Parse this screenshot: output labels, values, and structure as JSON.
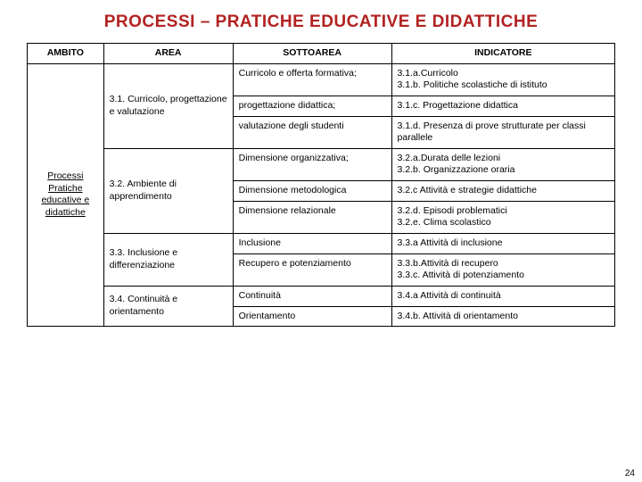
{
  "title_color": "#b22222",
  "title": "PROCESSI – PRATICHE EDUCATIVE E DIDATTICHE",
  "headers": {
    "ambito": "AMBITO",
    "area": "AREA",
    "sottoarea": "SOTTOAREA",
    "indicatore": "INDICATORE"
  },
  "ambito": "Processi Pratiche educative e didattiche",
  "areas": {
    "a31": "3.1. Curricolo, progettazione e valutazione",
    "a32": "3.2.  Ambiente di apprendimento",
    "a33": "3.3. Inclusione e differenziazione",
    "a34": "3.4. Continuità e orientamento"
  },
  "rows": {
    "r1s": "Curricolo e offerta formativa;",
    "r1i": "3.1.a.Curricolo\n3.1.b. Politiche scolastiche di istituto",
    "r2s": "progettazione didattica;",
    "r2i": "3.1.c. Progettazione didattica",
    "r3s": "valutazione degli studenti",
    "r3i": "3.1.d. Presenza di prove strutturate per classi parallele",
    "r4s": "Dimensione organizzativa;",
    "r4i": "3.2.a.Durata delle lezioni\n3.2.b. Organizzazione oraria",
    "r5s": "Dimensione metodologica",
    "r5i": "3.2.c Attività e strategie didattiche",
    "r6s": "Dimensione relazionale",
    "r6i": "3.2.d. Episodi problematici\n3.2.e. Clima scolastico",
    "r7s": "Inclusione",
    "r7i": "3.3.a Attività di inclusione",
    "r8s": "Recupero e potenziamento",
    "r8i": "3.3.b.Attività di recupero\n3.3.c. Attività di potenziamento",
    "r9s": "Continuità",
    "r9i": "3.4.a Attività di continuità",
    "r10s": "Orientamento",
    "r10i": "3.4.b. Attività di orientamento"
  },
  "page_number": "24"
}
